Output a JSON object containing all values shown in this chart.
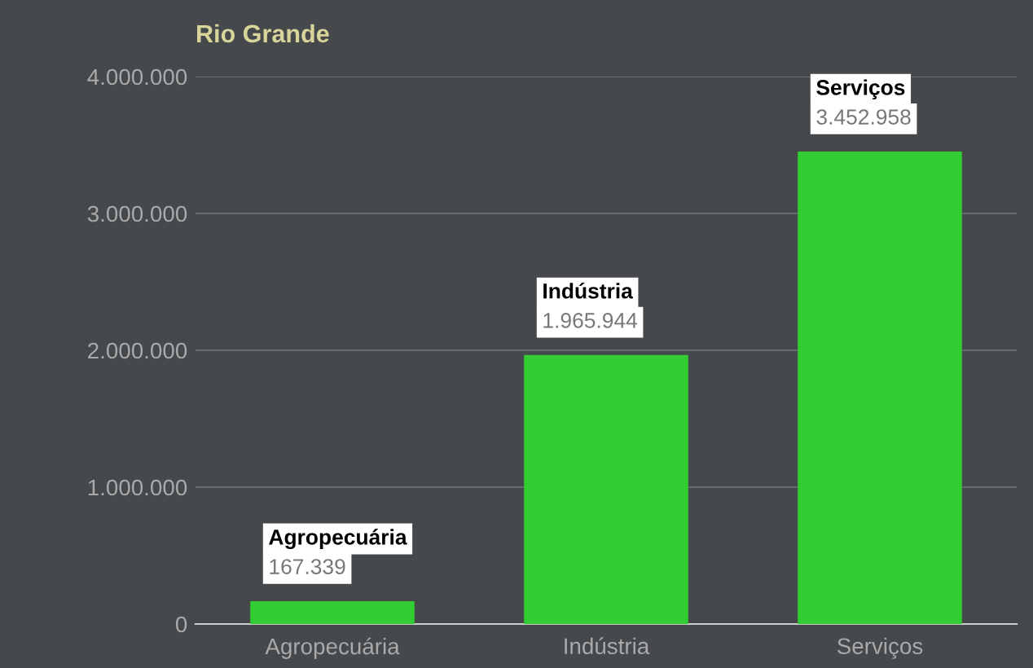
{
  "chart_data": {
    "type": "bar",
    "title": "Rio Grande",
    "categories": [
      "Agropecuária",
      "Indústria",
      "Serviços"
    ],
    "values": [
      167339,
      1965944,
      3452958
    ],
    "value_labels": [
      "167.339",
      "1.965.944",
      "3.452.958"
    ],
    "color": "#33cc33",
    "ylim": [
      0,
      4000000
    ],
    "yticks": [
      {
        "value": 0,
        "label": "0"
      },
      {
        "value": 1000000,
        "label": "1.000.000"
      },
      {
        "value": 2000000,
        "label": "2.000.000"
      },
      {
        "value": 3000000,
        "label": "3.000.000"
      },
      {
        "value": 4000000,
        "label": "4.000.000"
      }
    ],
    "grid": "y",
    "legend": false
  }
}
